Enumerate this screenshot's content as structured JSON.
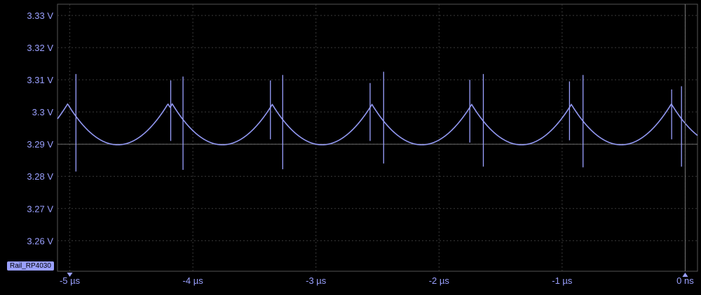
{
  "chart_data": {
    "type": "line",
    "title": "",
    "xlabel": "",
    "ylabel": "",
    "xlim": [
      -5.1,
      0.1
    ],
    "ylim": [
      3.2505,
      3.3335
    ],
    "x_ticks": [
      -5,
      -4,
      -3,
      -2,
      -1,
      0
    ],
    "x_tick_labels": [
      "-5 µs",
      "-4 µs",
      "-3 µs",
      "-2 µs",
      "-1 µs",
      "0 ns"
    ],
    "y_ticks": [
      3.33,
      3.32,
      3.31,
      3.3,
      3.29,
      3.28,
      3.27,
      3.26
    ],
    "y_tick_labels": [
      "3.33 V",
      "3.32 V",
      "3.31 V",
      "3.3 V",
      "3.29 V",
      "3.28 V",
      "3.27 V",
      "3.26 V"
    ],
    "grid": true,
    "series": [
      {
        "name": "Rail_RP4030",
        "color": "#9aa0ff",
        "period_us": 0.815,
        "trough_times_us": [
          -4.61,
          -3.76,
          -2.95,
          -2.14,
          -1.33,
          -0.52
        ],
        "trough_value": 3.2898,
        "peak_value": 3.3025,
        "spikes": [
          {
            "x": -4.95,
            "high": 3.3118,
            "low": 3.2815
          },
          {
            "x": -4.18,
            "high": 3.3098,
            "low": 3.291
          },
          {
            "x": -4.08,
            "high": 3.311,
            "low": 3.282
          },
          {
            "x": -3.37,
            "high": 3.3098,
            "low": 3.2915
          },
          {
            "x": -3.27,
            "high": 3.3115,
            "low": 3.2822
          },
          {
            "x": -2.56,
            "high": 3.309,
            "low": 3.291
          },
          {
            "x": -2.45,
            "high": 3.3125,
            "low": 3.284
          },
          {
            "x": -1.75,
            "high": 3.31,
            "low": 3.2905
          },
          {
            "x": -1.64,
            "high": 3.3118,
            "low": 3.283
          },
          {
            "x": -0.94,
            "high": 3.3095,
            "low": 3.2912
          },
          {
            "x": -0.83,
            "high": 3.3115,
            "low": 3.2828
          },
          {
            "x": -0.11,
            "high": 3.307,
            "low": 3.2915
          },
          {
            "x": -0.03,
            "high": 3.308,
            "low": 3.283
          }
        ]
      }
    ]
  },
  "channel_label": "Rail_RP4030"
}
